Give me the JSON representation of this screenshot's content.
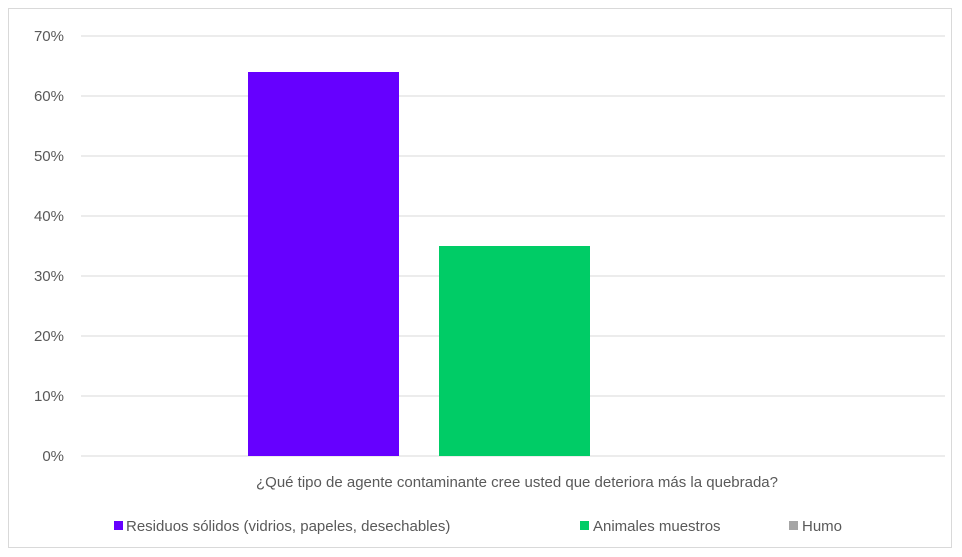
{
  "chart_data": {
    "type": "bar",
    "title": "",
    "categories": [
      "¿Qué tipo de agente contaminante cree usted que deteriora más la quebrada?"
    ],
    "series": [
      {
        "name": "Residuos sólidos (vidrios, papeles, desechables)",
        "values": [
          64
        ],
        "color": "#6600ff"
      },
      {
        "name": "Animales muestros",
        "values": [
          35
        ],
        "color": "#00cc66"
      },
      {
        "name": "Humo",
        "values": [
          0
        ],
        "color": "#a5a5a5"
      }
    ],
    "y_unit": "%",
    "ylim": [
      0,
      70
    ],
    "y_ticks": [
      0,
      10,
      20,
      30,
      40,
      50,
      60,
      70
    ],
    "y_tick_labels": [
      "0%",
      "10%",
      "20%",
      "30%",
      "40%",
      "50%",
      "60%",
      "70%"
    ],
    "grid": true,
    "gridline_color": "#d9d9d9",
    "legend_position": "bottom"
  }
}
